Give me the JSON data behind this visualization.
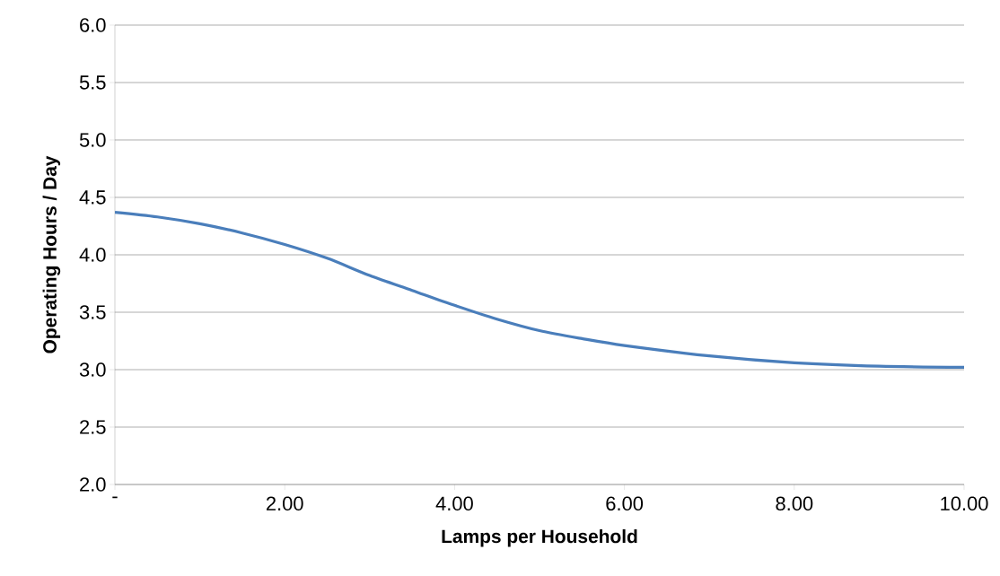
{
  "chart_data": {
    "type": "line",
    "xlabel": "Lamps per Household",
    "ylabel": "Operating Hours / Day",
    "x": [
      0,
      0.5,
      1,
      1.5,
      2,
      2.5,
      3,
      3.5,
      4,
      4.5,
      5,
      5.5,
      6,
      7,
      8,
      9,
      10
    ],
    "series": [
      {
        "color": "#4a7ebb",
        "values": [
          4.37,
          4.33,
          4.27,
          4.19,
          4.09,
          3.97,
          3.82,
          3.69,
          3.56,
          3.44,
          3.34,
          3.27,
          3.21,
          3.12,
          3.06,
          3.03,
          3.02
        ]
      }
    ],
    "xlim": [
      0,
      10
    ],
    "ylim": [
      2,
      6
    ],
    "xticks": [
      {
        "value": 0,
        "label": "-"
      },
      {
        "value": 2,
        "label": "2.00"
      },
      {
        "value": 4,
        "label": "4.00"
      },
      {
        "value": 6,
        "label": "6.00"
      },
      {
        "value": 8,
        "label": "8.00"
      },
      {
        "value": 10,
        "label": "10.00"
      }
    ],
    "yticks": [
      {
        "value": 2,
        "label": "2.0"
      },
      {
        "value": 2.5,
        "label": "2.5"
      },
      {
        "value": 3,
        "label": "3.0"
      },
      {
        "value": 3.5,
        "label": "3.5"
      },
      {
        "value": 4,
        "label": "4.0"
      },
      {
        "value": 4.5,
        "label": "4.5"
      },
      {
        "value": 5,
        "label": "5.0"
      },
      {
        "value": 5.5,
        "label": "5.5"
      },
      {
        "value": 6,
        "label": "6.0"
      }
    ],
    "grid": "y",
    "marker": "none",
    "line_style": "solid"
  }
}
